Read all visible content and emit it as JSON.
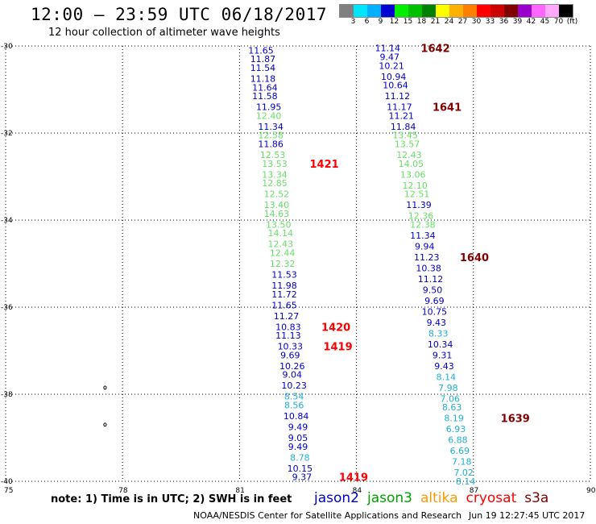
{
  "header": {
    "title": "12:00 – 23:59 UTC 06/18/2017",
    "subtitle": "12 hour collection of altimeter wave heights"
  },
  "legend": {
    "swatches": [
      "#808080",
      "#00e5ff",
      "#00b0ff",
      "#0000d0",
      "#00ee00",
      "#00c000",
      "#008000",
      "#ffff00",
      "#ffb000",
      "#ff8000",
      "#ff0000",
      "#cc0000",
      "#800000",
      "#9900cc",
      "#ff66ff",
      "#ffaaff",
      "#000000"
    ],
    "labels": [
      "3",
      "6",
      "9",
      "12",
      "15",
      "18",
      "21",
      "24",
      "27",
      "30",
      "33",
      "36",
      "39",
      "42",
      "45",
      "70",
      "(ft)"
    ]
  },
  "colors": {
    "jason2": "#0000c8",
    "jason3": "#00a000",
    "jason3_light": "#66e066",
    "altika": "#ff9900",
    "cryosat": "#ff0000",
    "s3a": "#800000",
    "cyan": "#20b0d0"
  },
  "axes": {
    "x_ticks": [
      "75",
      "78",
      "81",
      "84",
      "87",
      "90"
    ],
    "y_ticks": [
      "-30",
      "-32",
      "-34",
      "-36",
      "-38",
      "-40"
    ]
  },
  "chart_data": {
    "type": "scatter",
    "x_unit": "longitude (deg E)",
    "y_unit": "latitude (deg)",
    "xlim": [
      75,
      90
    ],
    "ylim": [
      -40,
      -30
    ],
    "grid": true,
    "series": [
      {
        "id": "track_west",
        "points": [
          {
            "lat": -30.1,
            "lon": 81.55,
            "v": "11.65",
            "c": "jason2"
          },
          {
            "lat": -30.3,
            "lon": 81.6,
            "v": "11.87",
            "c": "jason2"
          },
          {
            "lat": -30.5,
            "lon": 81.6,
            "v": "11.54",
            "c": "jason2"
          },
          {
            "lat": -30.75,
            "lon": 81.6,
            "v": "11.18",
            "c": "jason2"
          },
          {
            "lat": -30.95,
            "lon": 81.65,
            "v": "11.64",
            "c": "jason2"
          },
          {
            "lat": -31.15,
            "lon": 81.65,
            "v": "11.58",
            "c": "jason2"
          },
          {
            "lat": -31.4,
            "lon": 81.75,
            "v": "11.95",
            "c": "jason2"
          },
          {
            "lat": -31.6,
            "lon": 81.75,
            "v": "12.40",
            "c": "jason3_light"
          },
          {
            "lat": -31.85,
            "lon": 81.8,
            "v": "11.34",
            "c": "jason2"
          },
          {
            "lat": -32.05,
            "lon": 81.8,
            "v": "12.58",
            "c": "jason3_light"
          },
          {
            "lat": -32.25,
            "lon": 81.8,
            "v": "11.86",
            "c": "jason2"
          },
          {
            "lat": -32.5,
            "lon": 81.85,
            "v": "12.53",
            "c": "jason3_light"
          },
          {
            "lat": -32.7,
            "lon": 81.9,
            "v": "13.53",
            "c": "jason3_light"
          },
          {
            "lat": -32.95,
            "lon": 81.9,
            "v": "13.34",
            "c": "jason3_light"
          },
          {
            "lat": -33.15,
            "lon": 81.9,
            "v": "12.85",
            "c": "jason3_light"
          },
          {
            "lat": -33.4,
            "lon": 81.95,
            "v": "12.52",
            "c": "jason3_light"
          },
          {
            "lat": -33.65,
            "lon": 81.95,
            "v": "13.40",
            "c": "jason3_light"
          },
          {
            "lat": -33.85,
            "lon": 81.95,
            "v": "14.63",
            "c": "jason3_light"
          },
          {
            "lat": -34.1,
            "lon": 82.0,
            "v": "13.50",
            "c": "jason3_light"
          },
          {
            "lat": -34.3,
            "lon": 82.05,
            "v": "14.14",
            "c": "jason3_light"
          },
          {
            "lat": -34.55,
            "lon": 82.05,
            "v": "12.43",
            "c": "jason3_light"
          },
          {
            "lat": -34.75,
            "lon": 82.1,
            "v": "12.44",
            "c": "jason3_light"
          },
          {
            "lat": -35.0,
            "lon": 82.1,
            "v": "12.32",
            "c": "jason3_light"
          },
          {
            "lat": -35.25,
            "lon": 82.15,
            "v": "11.53",
            "c": "jason2"
          },
          {
            "lat": -35.5,
            "lon": 82.15,
            "v": "11.98",
            "c": "jason2"
          },
          {
            "lat": -35.7,
            "lon": 82.15,
            "v": "11.72",
            "c": "jason2"
          },
          {
            "lat": -35.95,
            "lon": 82.15,
            "v": "11.65",
            "c": "jason2"
          },
          {
            "lat": -36.2,
            "lon": 82.2,
            "v": "11.27",
            "c": "jason2"
          },
          {
            "lat": -36.45,
            "lon": 82.25,
            "v": "10.83",
            "c": "jason2"
          },
          {
            "lat": -36.65,
            "lon": 82.25,
            "v": "11.13",
            "c": "jason2"
          },
          {
            "lat": -36.9,
            "lon": 82.3,
            "v": "10.33",
            "c": "jason2"
          },
          {
            "lat": -37.1,
            "lon": 82.3,
            "v": "9.69",
            "c": "jason2"
          },
          {
            "lat": -37.35,
            "lon": 82.35,
            "v": "10.26",
            "c": "jason2"
          },
          {
            "lat": -37.55,
            "lon": 82.35,
            "v": "9.04",
            "c": "jason2"
          },
          {
            "lat": -37.8,
            "lon": 82.4,
            "v": "10.23",
            "c": "jason2"
          },
          {
            "lat": -38.05,
            "lon": 82.4,
            "v": "8.54",
            "c": "cyan"
          },
          {
            "lat": -38.25,
            "lon": 82.4,
            "v": "8.56",
            "c": "cyan"
          },
          {
            "lat": -38.5,
            "lon": 82.45,
            "v": "10.84",
            "c": "jason2"
          },
          {
            "lat": -38.75,
            "lon": 82.5,
            "v": "9.49",
            "c": "jason2"
          },
          {
            "lat": -39.0,
            "lon": 82.5,
            "v": "9.05",
            "c": "jason2"
          },
          {
            "lat": -39.2,
            "lon": 82.5,
            "v": "9.49",
            "c": "jason2"
          },
          {
            "lat": -39.45,
            "lon": 82.55,
            "v": "8.78",
            "c": "cyan"
          },
          {
            "lat": -39.7,
            "lon": 82.55,
            "v": "10.15",
            "c": "jason2"
          },
          {
            "lat": -39.9,
            "lon": 82.6,
            "v": "9.37",
            "c": "jason2"
          }
        ]
      },
      {
        "id": "track_east",
        "points": [
          {
            "lat": -30.05,
            "lon": 84.8,
            "v": "11.14",
            "c": "jason2"
          },
          {
            "lat": -30.25,
            "lon": 84.85,
            "v": "9.47",
            "c": "jason2"
          },
          {
            "lat": -30.45,
            "lon": 84.9,
            "v": "10.21",
            "c": "jason2"
          },
          {
            "lat": -30.7,
            "lon": 84.95,
            "v": "10.94",
            "c": "jason2"
          },
          {
            "lat": -30.9,
            "lon": 85.0,
            "v": "10.64",
            "c": "jason2"
          },
          {
            "lat": -31.15,
            "lon": 85.05,
            "v": "11.12",
            "c": "jason2"
          },
          {
            "lat": -31.4,
            "lon": 85.1,
            "v": "11.17",
            "c": "jason2"
          },
          {
            "lat": -31.6,
            "lon": 85.15,
            "v": "11.21",
            "c": "jason2"
          },
          {
            "lat": -31.85,
            "lon": 85.2,
            "v": "11.84",
            "c": "jason2"
          },
          {
            "lat": -32.05,
            "lon": 85.25,
            "v": "13.45",
            "c": "jason3_light"
          },
          {
            "lat": -32.25,
            "lon": 85.3,
            "v": "13.57",
            "c": "jason3_light"
          },
          {
            "lat": -32.5,
            "lon": 85.35,
            "v": "12.43",
            "c": "jason3_light"
          },
          {
            "lat": -32.7,
            "lon": 85.4,
            "v": "14.05",
            "c": "jason3_light"
          },
          {
            "lat": -32.95,
            "lon": 85.45,
            "v": "13.06",
            "c": "jason3_light"
          },
          {
            "lat": -33.2,
            "lon": 85.5,
            "v": "12.10",
            "c": "jason3_light"
          },
          {
            "lat": -33.4,
            "lon": 85.55,
            "v": "12.51",
            "c": "jason3_light"
          },
          {
            "lat": -33.65,
            "lon": 85.6,
            "v": "11.39",
            "c": "jason2"
          },
          {
            "lat": -33.9,
            "lon": 85.65,
            "v": "12.36",
            "c": "jason3_light"
          },
          {
            "lat": -34.1,
            "lon": 85.7,
            "v": "12.38",
            "c": "jason3_light"
          },
          {
            "lat": -34.35,
            "lon": 85.7,
            "v": "11.34",
            "c": "jason2"
          },
          {
            "lat": -34.6,
            "lon": 85.75,
            "v": "9.94",
            "c": "jason2"
          },
          {
            "lat": -34.85,
            "lon": 85.8,
            "v": "11.23",
            "c": "jason2"
          },
          {
            "lat": -35.1,
            "lon": 85.85,
            "v": "10.38",
            "c": "jason2"
          },
          {
            "lat": -35.35,
            "lon": 85.9,
            "v": "11.12",
            "c": "jason2"
          },
          {
            "lat": -35.6,
            "lon": 85.95,
            "v": "9.50",
            "c": "jason2"
          },
          {
            "lat": -35.85,
            "lon": 86.0,
            "v": "9.69",
            "c": "jason2"
          },
          {
            "lat": -36.1,
            "lon": 86.0,
            "v": "10.75",
            "c": "jason2"
          },
          {
            "lat": -36.35,
            "lon": 86.05,
            "v": "9.43",
            "c": "jason2"
          },
          {
            "lat": -36.6,
            "lon": 86.1,
            "v": "8.33",
            "c": "cyan"
          },
          {
            "lat": -36.85,
            "lon": 86.15,
            "v": "10.34",
            "c": "jason2"
          },
          {
            "lat": -37.1,
            "lon": 86.2,
            "v": "9.31",
            "c": "jason2"
          },
          {
            "lat": -37.35,
            "lon": 86.25,
            "v": "9.43",
            "c": "jason2"
          },
          {
            "lat": -37.6,
            "lon": 86.3,
            "v": "8.14",
            "c": "cyan"
          },
          {
            "lat": -37.85,
            "lon": 86.35,
            "v": "7.98",
            "c": "cyan"
          },
          {
            "lat": -38.1,
            "lon": 86.4,
            "v": "7.06",
            "c": "cyan"
          },
          {
            "lat": -38.3,
            "lon": 86.45,
            "v": "8.63",
            "c": "cyan"
          },
          {
            "lat": -38.55,
            "lon": 86.5,
            "v": "8.19",
            "c": "cyan"
          },
          {
            "lat": -38.8,
            "lon": 86.55,
            "v": "6.93",
            "c": "cyan"
          },
          {
            "lat": -39.05,
            "lon": 86.6,
            "v": "6.88",
            "c": "cyan"
          },
          {
            "lat": -39.3,
            "lon": 86.65,
            "v": "6.69",
            "c": "cyan"
          },
          {
            "lat": -39.55,
            "lon": 86.7,
            "v": "7.18",
            "c": "cyan"
          },
          {
            "lat": -39.8,
            "lon": 86.75,
            "v": "7.02",
            "c": "cyan"
          },
          {
            "lat": -40.0,
            "lon": 86.8,
            "v": "8.14",
            "c": "cyan"
          }
        ]
      }
    ],
    "pass_labels": [
      {
        "lat": -30.05,
        "lon": 85.65,
        "text": "1642",
        "c": "s3a"
      },
      {
        "lat": -31.4,
        "lon": 85.95,
        "text": "1641",
        "c": "s3a"
      },
      {
        "lat": -32.7,
        "lon": 82.8,
        "text": "1421",
        "c": "cryosat"
      },
      {
        "lat": -34.85,
        "lon": 86.65,
        "text": "1640",
        "c": "s3a"
      },
      {
        "lat": -36.45,
        "lon": 83.1,
        "text": "1420",
        "c": "cryosat"
      },
      {
        "lat": -36.9,
        "lon": 83.15,
        "text": "1419",
        "c": "cryosat"
      },
      {
        "lat": -38.55,
        "lon": 87.7,
        "text": "1639",
        "c": "s3a"
      },
      {
        "lat": -39.9,
        "lon": 83.55,
        "text": "1419",
        "c": "cryosat"
      }
    ],
    "island_marks": [
      {
        "lat": -37.85,
        "lon": 77.55
      },
      {
        "lat": -38.7,
        "lon": 77.55
      }
    ]
  },
  "footer": {
    "note": "note: 1) Time is in UTC; 2) SWH is in feet",
    "satellites": [
      {
        "name": "jason2",
        "color_key": "jason2"
      },
      {
        "name": "jason3",
        "color_key": "jason3"
      },
      {
        "name": "altika",
        "color_key": "altika"
      },
      {
        "name": "cryosat",
        "color_key": "cryosat"
      },
      {
        "name": "s3a",
        "color_key": "s3a"
      }
    ],
    "credit": "NOAA/NESDIS Center for Satellite Applications and Research",
    "timestamp": "Jun 19 12:27:45 UTC 2017"
  }
}
